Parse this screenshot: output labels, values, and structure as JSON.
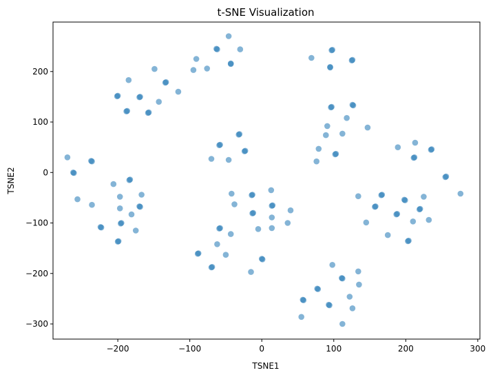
{
  "chart_data": {
    "type": "scatter",
    "title": "t-SNE Visualization",
    "xlabel": "TSNE1",
    "ylabel": "TSNE2",
    "xlim": [
      -290,
      303
    ],
    "ylim": [
      -330,
      298
    ],
    "xticks": [
      -200,
      -100,
      0,
      100,
      200,
      300
    ],
    "yticks": [
      -300,
      -200,
      -100,
      0,
      100,
      200
    ],
    "grid": false,
    "color": "#1f77b4",
    "alpha": 0.55,
    "points": [
      [
        -46,
        270
      ],
      [
        -91,
        225
      ],
      [
        -76,
        206
      ],
      [
        -95,
        203
      ],
      [
        -63,
        245
      ],
      [
        -62,
        244
      ],
      [
        -30,
        244
      ],
      [
        -43,
        216
      ],
      [
        -43,
        215
      ],
      [
        -185,
        183
      ],
      [
        -149,
        205
      ],
      [
        -200,
        152
      ],
      [
        -201,
        151
      ],
      [
        -169,
        150
      ],
      [
        -170,
        149
      ],
      [
        -133,
        179
      ],
      [
        -134,
        178
      ],
      [
        -116,
        160
      ],
      [
        -143,
        140
      ],
      [
        -187,
        122
      ],
      [
        -188,
        121
      ],
      [
        -157,
        119
      ],
      [
        -158,
        118
      ],
      [
        69,
        227
      ],
      [
        98,
        243
      ],
      [
        97,
        242
      ],
      [
        126,
        223
      ],
      [
        125,
        222
      ],
      [
        95,
        209
      ],
      [
        95,
        208
      ],
      [
        97,
        130
      ],
      [
        96,
        129
      ],
      [
        126,
        134
      ],
      [
        127,
        133
      ],
      [
        118,
        108
      ],
      [
        147,
        89
      ],
      [
        91,
        92
      ],
      [
        112,
        77
      ],
      [
        89,
        74
      ],
      [
        79,
        47
      ],
      [
        103,
        37
      ],
      [
        102,
        36
      ],
      [
        76,
        22
      ],
      [
        -270,
        30
      ],
      [
        -262,
        0
      ],
      [
        -261,
        -1
      ],
      [
        -237,
        23
      ],
      [
        -236,
        22
      ],
      [
        -256,
        -53
      ],
      [
        -236,
        -64
      ],
      [
        -183,
        -14
      ],
      [
        -184,
        -15
      ],
      [
        -206,
        -23
      ],
      [
        -197,
        -48
      ],
      [
        -167,
        -44
      ],
      [
        -170,
        -67
      ],
      [
        -169,
        -68
      ],
      [
        -197,
        -71
      ],
      [
        -195,
        -100
      ],
      [
        -196,
        -101
      ],
      [
        -224,
        -108
      ],
      [
        -223,
        -109
      ],
      [
        -175,
        -115
      ],
      [
        -181,
        -83
      ],
      [
        -199,
        -136
      ],
      [
        -200,
        -137
      ],
      [
        -58,
        55
      ],
      [
        -59,
        54
      ],
      [
        -31,
        76
      ],
      [
        -32,
        75
      ],
      [
        -70,
        27
      ],
      [
        -46,
        25
      ],
      [
        -23,
        43
      ],
      [
        -24,
        42
      ],
      [
        -42,
        -42
      ],
      [
        -38,
        -63
      ],
      [
        -13,
        -44
      ],
      [
        -14,
        -45
      ],
      [
        13,
        -35
      ],
      [
        15,
        -65
      ],
      [
        14,
        -66
      ],
      [
        -12,
        -80
      ],
      [
        -13,
        -81
      ],
      [
        40,
        -75
      ],
      [
        14,
        -89
      ],
      [
        36,
        -100
      ],
      [
        -5,
        -112
      ],
      [
        14,
        -110
      ],
      [
        -58,
        -110
      ],
      [
        -59,
        -111
      ],
      [
        -43,
        -122
      ],
      [
        -62,
        -142
      ],
      [
        -50,
        -163
      ],
      [
        -88,
        -160
      ],
      [
        -89,
        -161
      ],
      [
        -69,
        -187
      ],
      [
        -70,
        -188
      ],
      [
        -15,
        -197
      ],
      [
        0,
        -171
      ],
      [
        1,
        -172
      ],
      [
        98,
        -183
      ],
      [
        134,
        -196
      ],
      [
        135,
        -222
      ],
      [
        111,
        -209
      ],
      [
        112,
        -210
      ],
      [
        77,
        -230
      ],
      [
        78,
        -231
      ],
      [
        122,
        -246
      ],
      [
        57,
        -252
      ],
      [
        58,
        -253
      ],
      [
        93,
        -262
      ],
      [
        94,
        -263
      ],
      [
        126,
        -269
      ],
      [
        55,
        -286
      ],
      [
        112,
        -300
      ],
      [
        189,
        50
      ],
      [
        213,
        59
      ],
      [
        236,
        46
      ],
      [
        235,
        45
      ],
      [
        212,
        30
      ],
      [
        211,
        29
      ],
      [
        256,
        -8
      ],
      [
        255,
        -9
      ],
      [
        276,
        -42
      ],
      [
        134,
        -47
      ],
      [
        167,
        -44
      ],
      [
        166,
        -45
      ],
      [
        198,
        -54
      ],
      [
        199,
        -55
      ],
      [
        225,
        -48
      ],
      [
        158,
        -67
      ],
      [
        157,
        -68
      ],
      [
        220,
        -72
      ],
      [
        219,
        -73
      ],
      [
        188,
        -82
      ],
      [
        187,
        -83
      ],
      [
        145,
        -99
      ],
      [
        210,
        -97
      ],
      [
        232,
        -94
      ],
      [
        175,
        -124
      ],
      [
        204,
        -135
      ],
      [
        203,
        -136
      ]
    ]
  }
}
